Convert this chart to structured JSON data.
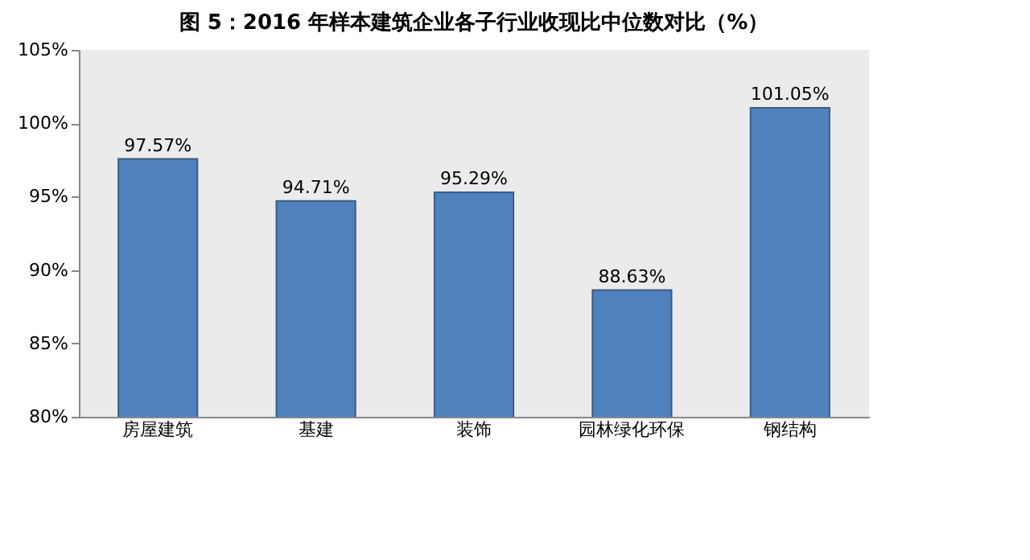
{
  "chart_data": {
    "type": "bar",
    "title": "图 5：2016 年样本建筑企业各子行业收现比中位数对比（%）",
    "categories": [
      "房屋建筑",
      "基建",
      "装饰",
      "园林绿化环保",
      "钢结构"
    ],
    "values": [
      97.57,
      94.71,
      95.29,
      88.63,
      101.05
    ],
    "value_labels": [
      "97.57%",
      "94.71%",
      "95.29%",
      "88.63%",
      "101.05%"
    ],
    "color": "#4f81bd",
    "ylim": [
      80,
      105
    ],
    "yticks": [
      {
        "value": 80,
        "label": "80%"
      },
      {
        "value": 85,
        "label": "85%"
      },
      {
        "value": 90,
        "label": "90%"
      },
      {
        "value": 95,
        "label": "95%"
      },
      {
        "value": 100,
        "label": "100%"
      },
      {
        "value": 105,
        "label": "105%"
      }
    ],
    "grid": false
  }
}
